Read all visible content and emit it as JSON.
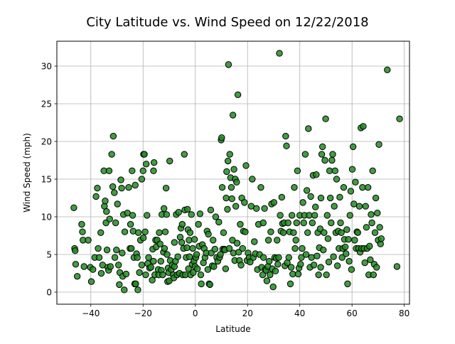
{
  "chart_data": {
    "type": "scatter",
    "title": "City Latitude vs. Wind Speed on 12/22/2018",
    "xlabel": "Latitude",
    "ylabel": "Wind Speed (mph)",
    "xlim": [
      -53,
      82
    ],
    "ylim": [
      -1.6,
      33.3
    ],
    "xticks": [
      -40,
      -20,
      0,
      20,
      40,
      60,
      80
    ],
    "yticks": [
      0,
      5,
      10,
      15,
      20,
      25,
      30
    ],
    "grid": true,
    "marker_fill": "#228b22",
    "marker_edge": "#000000",
    "points": [
      [
        -46.5,
        11.2
      ],
      [
        -46.2,
        5.8
      ],
      [
        -46.0,
        5.5
      ],
      [
        -45.8,
        3.7
      ],
      [
        -45.2,
        2.1
      ],
      [
        -43.5,
        9.0
      ],
      [
        -43.2,
        8.0
      ],
      [
        -43.0,
        6.9
      ],
      [
        -42.6,
        3.4
      ],
      [
        -41.0,
        6.9
      ],
      [
        -40.2,
        3.3
      ],
      [
        -39.8,
        1.4
      ],
      [
        -39.2,
        3.0
      ],
      [
        -38.5,
        4.6
      ],
      [
        -38.0,
        12.7
      ],
      [
        -37.5,
        13.8
      ],
      [
        -37.2,
        5.8
      ],
      [
        -36.8,
        4.6
      ],
      [
        -36.2,
        7.9
      ],
      [
        -36.0,
        2.5
      ],
      [
        -35.5,
        3.6
      ],
      [
        -35.0,
        16.1
      ],
      [
        -34.8,
        11.4
      ],
      [
        -34.5,
        12.1
      ],
      [
        -34.2,
        9.2
      ],
      [
        -34.0,
        10.7
      ],
      [
        -33.8,
        5.6
      ],
      [
        -33.5,
        3.3
      ],
      [
        -33.2,
        2.9
      ],
      [
        -33.0,
        16.1
      ],
      [
        -32.8,
        9.7
      ],
      [
        -32.5,
        3.4
      ],
      [
        -32.0,
        18.3
      ],
      [
        -31.6,
        14.0
      ],
      [
        -31.4,
        20.7
      ],
      [
        -31.0,
        13.2
      ],
      [
        -30.8,
        4.6
      ],
      [
        -30.5,
        9.2
      ],
      [
        -30.2,
        5.6
      ],
      [
        -29.8,
        11.7
      ],
      [
        -29.4,
        3.6
      ],
      [
        -29.1,
        1.0
      ],
      [
        -28.9,
        2.6
      ],
      [
        -28.5,
        14.9
      ],
      [
        -28.2,
        13.8
      ],
      [
        -28.0,
        5.2
      ],
      [
        -27.8,
        2.1
      ],
      [
        -27.5,
        10.3
      ],
      [
        -27.2,
        0.3
      ],
      [
        -27.0,
        8.0
      ],
      [
        -26.5,
        2.4
      ],
      [
        -26.0,
        10.5
      ],
      [
        -25.5,
        13.9
      ],
      [
        -25.0,
        5.8
      ],
      [
        -24.8,
        9.0
      ],
      [
        -24.5,
        5.8
      ],
      [
        -24.2,
        16.1
      ],
      [
        -24.0,
        10.2
      ],
      [
        -23.8,
        8.1
      ],
      [
        -23.5,
        4.6
      ],
      [
        -23.2,
        1.1
      ],
      [
        -23.0,
        14.2
      ],
      [
        -22.8,
        1.1
      ],
      [
        -22.5,
        5.1
      ],
      [
        -22.2,
        4.6
      ],
      [
        -22.0,
        0.3
      ],
      [
        -21.8,
        7.9
      ],
      [
        -21.4,
        2.6
      ],
      [
        -21.0,
        6.9
      ],
      [
        -20.5,
        15.0
      ],
      [
        -20.5,
        3.6
      ],
      [
        -20.0,
        16.1
      ],
      [
        -19.9,
        7.2
      ],
      [
        -19.8,
        18.3
      ],
      [
        -19.5,
        18.3
      ],
      [
        -19.2,
        8.0
      ],
      [
        -19.0,
        2.3
      ],
      [
        -18.8,
        17.0
      ],
      [
        -18.5,
        10.2
      ],
      [
        -18.2,
        3.8
      ],
      [
        -17.9,
        4.6
      ],
      [
        -17.5,
        3.2
      ],
      [
        -17.0,
        3.3
      ],
      [
        -16.5,
        1.6
      ],
      [
        -16.3,
        5.7
      ],
      [
        -16.0,
        16.1
      ],
      [
        -15.8,
        17.2
      ],
      [
        -15.5,
        2.3
      ],
      [
        -15.2,
        6.9
      ],
      [
        -15.0,
        6.0
      ],
      [
        -14.6,
        6.9
      ],
      [
        -14.2,
        3.0
      ],
      [
        -14.0,
        2.3
      ],
      [
        -13.8,
        7.9
      ],
      [
        -13.5,
        6.4
      ],
      [
        -13.2,
        4.1
      ],
      [
        -13.0,
        2.9
      ],
      [
        -12.8,
        10.3
      ],
      [
        -12.5,
        2.3
      ],
      [
        -12.2,
        5.3
      ],
      [
        -12.0,
        11.1
      ],
      [
        -11.8,
        5.8
      ],
      [
        -11.5,
        8.0
      ],
      [
        -11.2,
        13.8
      ],
      [
        -11.0,
        10.3
      ],
      [
        -10.8,
        5.0
      ],
      [
        -10.6,
        1.4
      ],
      [
        -10.4,
        3.2
      ],
      [
        -10.2,
        2.6
      ],
      [
        -10.0,
        1.5
      ],
      [
        -9.8,
        17.4
      ],
      [
        -9.6,
        4.2
      ],
      [
        -9.2,
        3.0
      ],
      [
        -8.8,
        3.6
      ],
      [
        -8.5,
        2.3
      ],
      [
        -8.2,
        1.9
      ],
      [
        -8.0,
        3.4
      ],
      [
        -7.6,
        4.1
      ],
      [
        -7.3,
        10.3
      ],
      [
        -7.0,
        2.3
      ],
      [
        -6.7,
        4.7
      ],
      [
        -6.4,
        10.6
      ],
      [
        -6.1,
        2.5
      ],
      [
        -5.8,
        7.3
      ],
      [
        -5.5,
        8.5
      ],
      [
        -5.2,
        6.6
      ],
      [
        -5.0,
        9.0
      ],
      [
        -4.8,
        2.3
      ],
      [
        -4.5,
        5.8
      ],
      [
        -4.2,
        18.3
      ],
      [
        -4.0,
        10.9
      ],
      [
        -3.8,
        2.3
      ],
      [
        -3.5,
        4.6
      ],
      [
        -3.2,
        5.9
      ],
      [
        -3.0,
        11.0
      ],
      [
        -2.8,
        8.3
      ],
      [
        -2.6,
        3.1
      ],
      [
        -2.4,
        6.9
      ],
      [
        -2.2,
        4.7
      ],
      [
        -2.0,
        7.9
      ],
      [
        -1.8,
        2.3
      ],
      [
        -1.5,
        10.3
      ],
      [
        -1.2,
        3.7
      ],
      [
        -1.0,
        5.8
      ],
      [
        -0.8,
        2.6
      ],
      [
        -0.5,
        4.1
      ],
      [
        -0.3,
        7.0
      ],
      [
        -0.1,
        3.4
      ],
      [
        0.2,
        4.6
      ],
      [
        0.5,
        5.0
      ],
      [
        0.8,
        3.1
      ],
      [
        1.2,
        9.0
      ],
      [
        1.5,
        6.1
      ],
      [
        1.8,
        10.4
      ],
      [
        2.1,
        2.3
      ],
      [
        2.3,
        1.1
      ],
      [
        2.7,
        6.3
      ],
      [
        3.1,
        3.9
      ],
      [
        3.4,
        5.8
      ],
      [
        3.7,
        4.6
      ],
      [
        4.2,
        5.2
      ],
      [
        4.5,
        8.1
      ],
      [
        4.8,
        3.0
      ],
      [
        5.0,
        7.7
      ],
      [
        5.3,
        1.1
      ],
      [
        5.6,
        1.0
      ],
      [
        5.9,
        10.9
      ],
      [
        6.1,
        5.2
      ],
      [
        6.5,
        3.5
      ],
      [
        6.8,
        6.9
      ],
      [
        7.1,
        3.4
      ],
      [
        7.5,
        5.7
      ],
      [
        7.8,
        10.0
      ],
      [
        8.2,
        4.6
      ],
      [
        8.6,
        4.1
      ],
      [
        9.0,
        9.3
      ],
      [
        9.3,
        4.6
      ],
      [
        9.6,
        5.0
      ],
      [
        9.9,
        20.2
      ],
      [
        10.1,
        20.5
      ],
      [
        10.3,
        13.9
      ],
      [
        10.5,
        5.7
      ],
      [
        10.8,
        7.9
      ],
      [
        11.1,
        5.7
      ],
      [
        11.3,
        5.6
      ],
      [
        11.6,
        3.1
      ],
      [
        11.8,
        12.5
      ],
      [
        12.0,
        16.0
      ],
      [
        12.3,
        11.0
      ],
      [
        12.5,
        17.4
      ],
      [
        12.7,
        30.2
      ],
      [
        13.0,
        5.8
      ],
      [
        13.2,
        18.3
      ],
      [
        13.5,
        15.2
      ],
      [
        13.8,
        13.9
      ],
      [
        14.0,
        12.4
      ],
      [
        14.2,
        6.9
      ],
      [
        14.4,
        23.5
      ],
      [
        14.6,
        5.2
      ],
      [
        14.8,
        16.3
      ],
      [
        15.1,
        4.2
      ],
      [
        15.3,
        15.0
      ],
      [
        15.5,
        11.4
      ],
      [
        15.8,
        14.6
      ],
      [
        16.0,
        6.5
      ],
      [
        16.3,
        26.2
      ],
      [
        16.6,
        5.3
      ],
      [
        16.9,
        4.2
      ],
      [
        17.2,
        9.0
      ],
      [
        17.5,
        3.6
      ],
      [
        17.8,
        12.5
      ],
      [
        18.1,
        5.8
      ],
      [
        18.4,
        8.1
      ],
      [
        18.8,
        11.9
      ],
      [
        19.1,
        8.0
      ],
      [
        19.4,
        16.8
      ],
      [
        19.8,
        4.2
      ],
      [
        20.2,
        5.2
      ],
      [
        20.6,
        4.6
      ],
      [
        21.0,
        4.0
      ],
      [
        21.4,
        11.4
      ],
      [
        21.8,
        15.0
      ],
      [
        22.2,
        4.6
      ],
      [
        22.6,
        6.7
      ],
      [
        23.0,
        5.1
      ],
      [
        23.4,
        11.1
      ],
      [
        23.8,
        3.0
      ],
      [
        24.2,
        9.0
      ],
      [
        24.6,
        5.0
      ],
      [
        25.1,
        13.9
      ],
      [
        25.4,
        3.3
      ],
      [
        25.8,
        2.3
      ],
      [
        26.1,
        4.6
      ],
      [
        26.5,
        11.1
      ],
      [
        26.8,
        3.0
      ],
      [
        27.1,
        2.9
      ],
      [
        27.4,
        1.5
      ],
      [
        27.8,
        3.4
      ],
      [
        28.0,
        6.9
      ],
      [
        28.3,
        4.1
      ],
      [
        28.6,
        2.3
      ],
      [
        28.9,
        8.0
      ],
      [
        29.2,
        11.7
      ],
      [
        29.5,
        3.1
      ],
      [
        29.8,
        0.7
      ],
      [
        30.1,
        11.9
      ],
      [
        30.4,
        4.6
      ],
      [
        30.7,
        2.8
      ],
      [
        31.0,
        4.5
      ],
      [
        31.3,
        6.9
      ],
      [
        31.6,
        3.7
      ],
      [
        31.9,
        4.6
      ],
      [
        32.2,
        31.7
      ],
      [
        32.5,
        10.2
      ],
      [
        32.8,
        8.1
      ],
      [
        33.1,
        12.6
      ],
      [
        33.4,
        9.1
      ],
      [
        33.7,
        7.9
      ],
      [
        34.0,
        9.2
      ],
      [
        34.3,
        3.5
      ],
      [
        34.6,
        20.7
      ],
      [
        34.9,
        19.4
      ],
      [
        35.2,
        3.9
      ],
      [
        35.5,
        9.2
      ],
      [
        35.8,
        4.6
      ],
      [
        36.1,
        8.0
      ],
      [
        36.4,
        1.1
      ],
      [
        36.7,
        3.3
      ],
      [
        37.0,
        10.2
      ],
      [
        37.3,
        2.4
      ],
      [
        37.6,
        7.9
      ],
      [
        37.9,
        13.9
      ],
      [
        38.2,
        5.8
      ],
      [
        38.5,
        6.9
      ],
      [
        38.8,
        9.2
      ],
      [
        39.1,
        16.1
      ],
      [
        39.4,
        2.4
      ],
      [
        39.7,
        3.2
      ],
      [
        40.0,
        10.2
      ],
      [
        40.3,
        3.7
      ],
      [
        40.6,
        4.6
      ],
      [
        40.9,
        5.8
      ],
      [
        41.2,
        11.9
      ],
      [
        41.5,
        9.2
      ],
      [
        41.8,
        10.2
      ],
      [
        42.1,
        18.3
      ],
      [
        42.4,
        5.0
      ],
      [
        42.7,
        13.5
      ],
      [
        43.0,
        7.9
      ],
      [
        43.3,
        21.7
      ],
      [
        43.6,
        10.2
      ],
      [
        43.9,
        3.3
      ],
      [
        44.2,
        12.7
      ],
      [
        44.5,
        4.6
      ],
      [
        44.8,
        9.2
      ],
      [
        45.1,
        15.5
      ],
      [
        45.4,
        3.6
      ],
      [
        45.7,
        10.2
      ],
      [
        46.0,
        11.3
      ],
      [
        46.3,
        15.6
      ],
      [
        46.6,
        4.8
      ],
      [
        46.9,
        7.9
      ],
      [
        47.2,
        2.3
      ],
      [
        47.5,
        5.9
      ],
      [
        47.8,
        8.4
      ],
      [
        48.1,
        12.5
      ],
      [
        48.4,
        18.3
      ],
      [
        48.7,
        19.3
      ],
      [
        49.0,
        5.6
      ],
      [
        49.3,
        7.9
      ],
      [
        49.6,
        17.5
      ],
      [
        49.9,
        23.0
      ],
      [
        50.2,
        2.3
      ],
      [
        50.5,
        10.2
      ],
      [
        50.8,
        7.1
      ],
      [
        51.1,
        4.0
      ],
      [
        51.4,
        16.1
      ],
      [
        51.7,
        12.5
      ],
      [
        52.0,
        9.2
      ],
      [
        52.3,
        17.5
      ],
      [
        52.6,
        18.3
      ],
      [
        52.9,
        4.7
      ],
      [
        53.2,
        11.4
      ],
      [
        53.5,
        16.1
      ],
      [
        53.8,
        7.9
      ],
      [
        54.1,
        15.0
      ],
      [
        54.4,
        3.5
      ],
      [
        54.7,
        8.1
      ],
      [
        55.0,
        5.8
      ],
      [
        55.3,
        12.6
      ],
      [
        55.6,
        9.2
      ],
      [
        55.9,
        7.9
      ],
      [
        56.2,
        4.6
      ],
      [
        56.5,
        5.8
      ],
      [
        56.8,
        13.9
      ],
      [
        57.1,
        7.0
      ],
      [
        57.4,
        6.0
      ],
      [
        57.7,
        5.1
      ],
      [
        58.0,
        8.3
      ],
      [
        58.3,
        1.1
      ],
      [
        58.6,
        7.0
      ],
      [
        58.9,
        4.1
      ],
      [
        59.2,
        10.2
      ],
      [
        59.5,
        13.4
      ],
      [
        59.8,
        3.0
      ],
      [
        60.1,
        16.3
      ],
      [
        60.4,
        19.3
      ],
      [
        60.7,
        11.7
      ],
      [
        61.0,
        6.9
      ],
      [
        61.3,
        14.6
      ],
      [
        61.6,
        5.8
      ],
      [
        61.9,
        8.0
      ],
      [
        62.2,
        7.9
      ],
      [
        62.5,
        5.8
      ],
      [
        62.8,
        11.4
      ],
      [
        63.1,
        5.3
      ],
      [
        63.4,
        21.8
      ],
      [
        63.7,
        5.8
      ],
      [
        64.0,
        13.9
      ],
      [
        64.3,
        22.0
      ],
      [
        64.6,
        5.8
      ],
      [
        64.9,
        3.9
      ],
      [
        65.2,
        11.4
      ],
      [
        65.5,
        8.6
      ],
      [
        65.8,
        5.8
      ],
      [
        66.1,
        13.9
      ],
      [
        66.4,
        2.3
      ],
      [
        66.7,
        6.1
      ],
      [
        67.0,
        4.3
      ],
      [
        67.3,
        10.3
      ],
      [
        67.6,
        9.2
      ],
      [
        67.9,
        16.1
      ],
      [
        68.2,
        2.3
      ],
      [
        68.5,
        3.7
      ],
      [
        68.8,
        7.9
      ],
      [
        69.1,
        12.5
      ],
      [
        69.4,
        3.3
      ],
      [
        69.7,
        10.5
      ],
      [
        70.0,
        6.9
      ],
      [
        70.3,
        19.6
      ],
      [
        70.6,
        8.6
      ],
      [
        70.9,
        6.4
      ],
      [
        71.2,
        7.1
      ],
      [
        73.5,
        29.5
      ],
      [
        77.2,
        3.4
      ],
      [
        78.2,
        23.0
      ],
      [
        -16.0,
        4.1
      ],
      [
        -8.0,
        6.6
      ],
      [
        26.0,
        9.2
      ],
      [
        48.0,
        3.3
      ]
    ]
  }
}
